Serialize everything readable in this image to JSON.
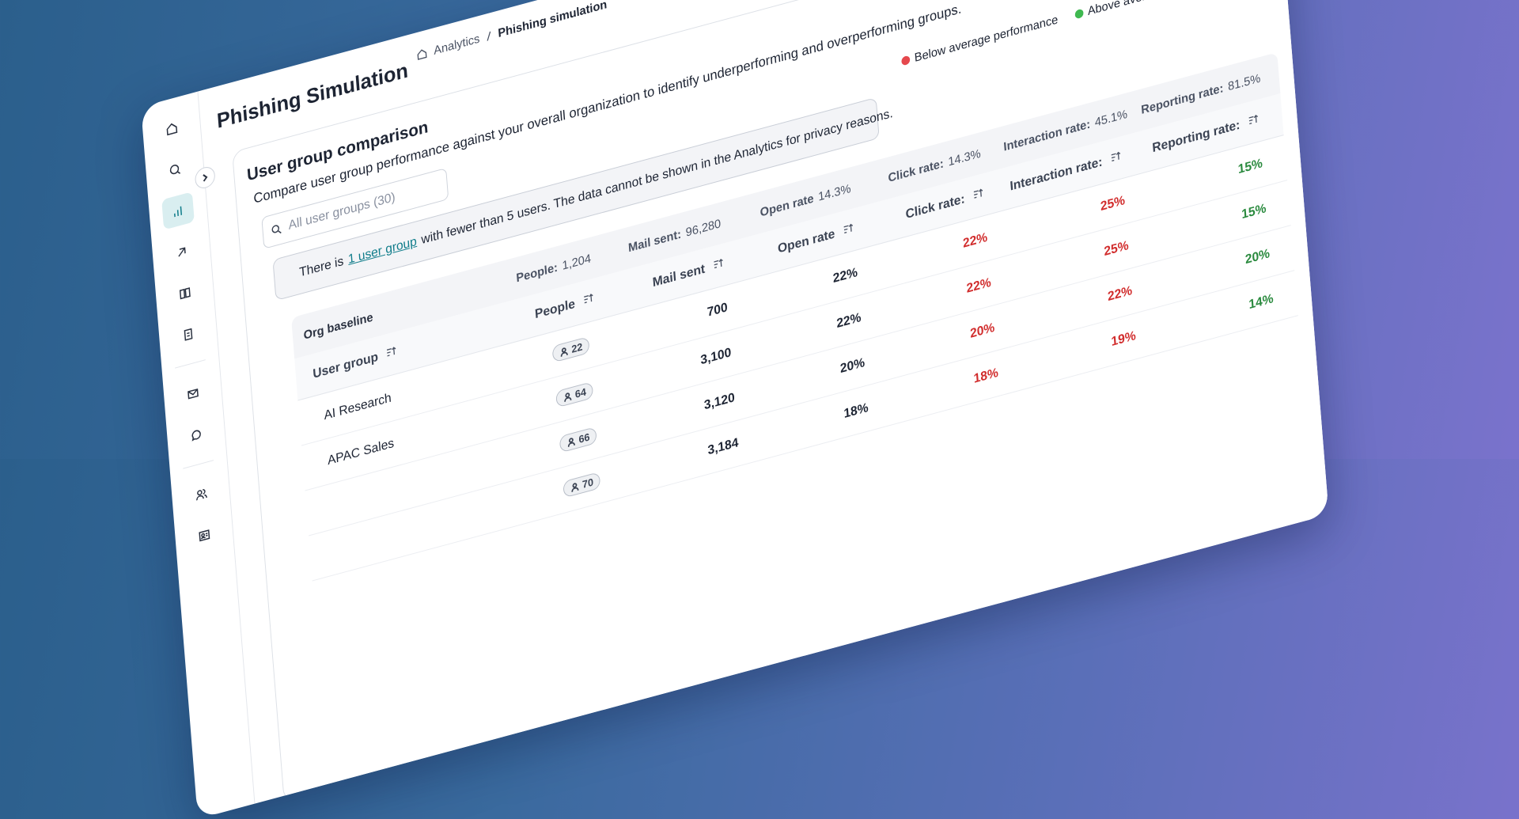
{
  "breadcrumb": [
    "Analytics",
    "Phishing simulation"
  ],
  "page_title": "Phishing Simulation",
  "section": {
    "title": "User group comparison",
    "description": "Compare user group performance against your overall organization to identify underperforming and overperforming groups."
  },
  "search_placeholder": "All user groups (30)",
  "legend": [
    "Below average performance",
    "Above average performance"
  ],
  "notice": {
    "before": "There is",
    "link": "1 user group",
    "after": "with fewer than 5 users. The data cannot be shown in the Analytics for privacy reasons."
  },
  "baseline": {
    "label": "Org baseline",
    "items": [
      {
        "label": "People:",
        "value": "1,204"
      },
      {
        "label": "Mail sent:",
        "value": "96,280"
      },
      {
        "label": "Open rate",
        "value": "14.3%"
      },
      {
        "label": "Click rate:",
        "value": "14.3%"
      },
      {
        "label": "Interaction rate:",
        "value": "45.1%"
      },
      {
        "label": "Reporting rate:",
        "value": "81.5%"
      }
    ]
  },
  "table": {
    "columns": [
      "User group",
      "People",
      "Mail sent",
      "Open rate",
      "Click rate:",
      "Interaction rate:",
      "Reporting rate:"
    ],
    "rows": [
      [
        "AI Research",
        "22",
        "700",
        "22%",
        "22%",
        "25%",
        "15%"
      ],
      [
        "APAC Sales",
        "64",
        "3,100",
        "22%",
        "22%",
        "25%",
        "15%"
      ],
      [
        null,
        "66",
        "3,120",
        "20%",
        "20%",
        "22%",
        "20%"
      ],
      [
        null,
        "70",
        "3,184",
        "18%",
        "18%",
        "19%",
        "14%"
      ]
    ]
  }
}
